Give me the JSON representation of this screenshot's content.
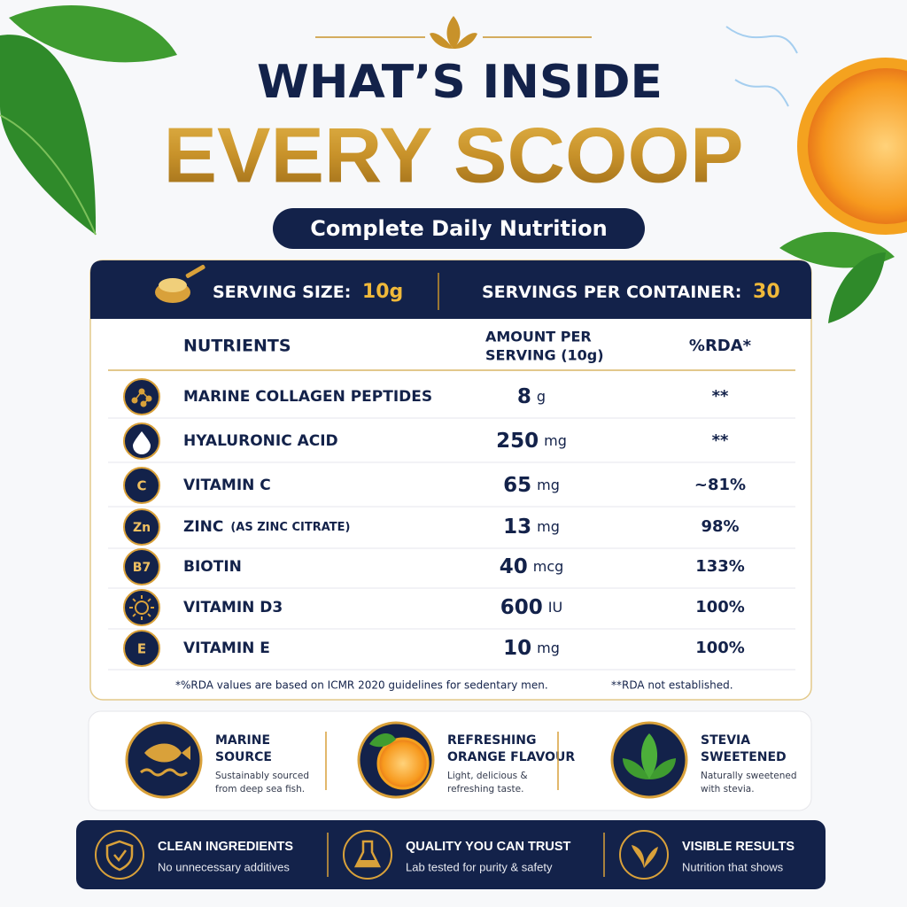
{
  "header": {
    "title_line1": "WHAT’S INSIDE",
    "title_line2": "EVERY SCOOP",
    "subtitle": "Complete Daily Nutrition"
  },
  "serving": {
    "size_label": "SERVING SIZE:",
    "size_value": "10g",
    "per_container_label": "SERVINGS PER CONTAINER:",
    "per_container_value": "30"
  },
  "table": {
    "columns": {
      "nutrients": "NUTRIENTS",
      "amount": [
        "AMOUNT PER",
        "SERVING (10g)"
      ],
      "rda": "%RDA*"
    },
    "rows": [
      {
        "icon": "molecule",
        "name": "MARINE COLLAGEN PEPTIDES",
        "amount": "8",
        "unit": "g",
        "rda": "**"
      },
      {
        "icon": "drop",
        "name": "HYALURONIC ACID",
        "amount": "250",
        "unit": "mg",
        "rda": "**"
      },
      {
        "badge": "C",
        "name": "VITAMIN C",
        "amount": "65",
        "unit": "mg",
        "rda": "~81%"
      },
      {
        "badge": "Zn",
        "name": "ZINC",
        "note": "(AS ZINC CITRATE)",
        "amount": "13",
        "unit": "mg",
        "rda": "98%"
      },
      {
        "badge": "B7",
        "name": "BIOTIN",
        "amount": "40",
        "unit": "mcg",
        "rda": "133%"
      },
      {
        "icon": "sun",
        "name": "VITAMIN D3",
        "amount": "600",
        "unit": "IU",
        "rda": "100%"
      },
      {
        "badge": "E",
        "name": "VITAMIN E",
        "amount": "10",
        "unit": "mg",
        "rda": "100%"
      }
    ],
    "footnotes": [
      "*%RDA values are based on ICMR 2020 guidelines for sedentary men.",
      "**RDA not established."
    ]
  },
  "features": [
    {
      "title": [
        "MARINE",
        "SOURCE"
      ],
      "description": [
        "Sustainably sourced",
        "from deep sea fish."
      ]
    },
    {
      "title": [
        "REFRESHING",
        "ORANGE FLAVOUR"
      ],
      "description": [
        "Light, delicious &",
        "refreshing taste."
      ]
    },
    {
      "title": [
        "STEVIA",
        "SWEETENED"
      ],
      "description": [
        "Naturally sweetened",
        "with stevia."
      ]
    }
  ],
  "badges": [
    {
      "title": "CLEAN INGREDIENTS",
      "description": "No unnecessary additives"
    },
    {
      "title": "QUALITY YOU CAN TRUST",
      "description": "Lab tested for purity & safety"
    },
    {
      "title": "VISIBLE RESULTS",
      "description": "Nutrition that shows"
    }
  ]
}
